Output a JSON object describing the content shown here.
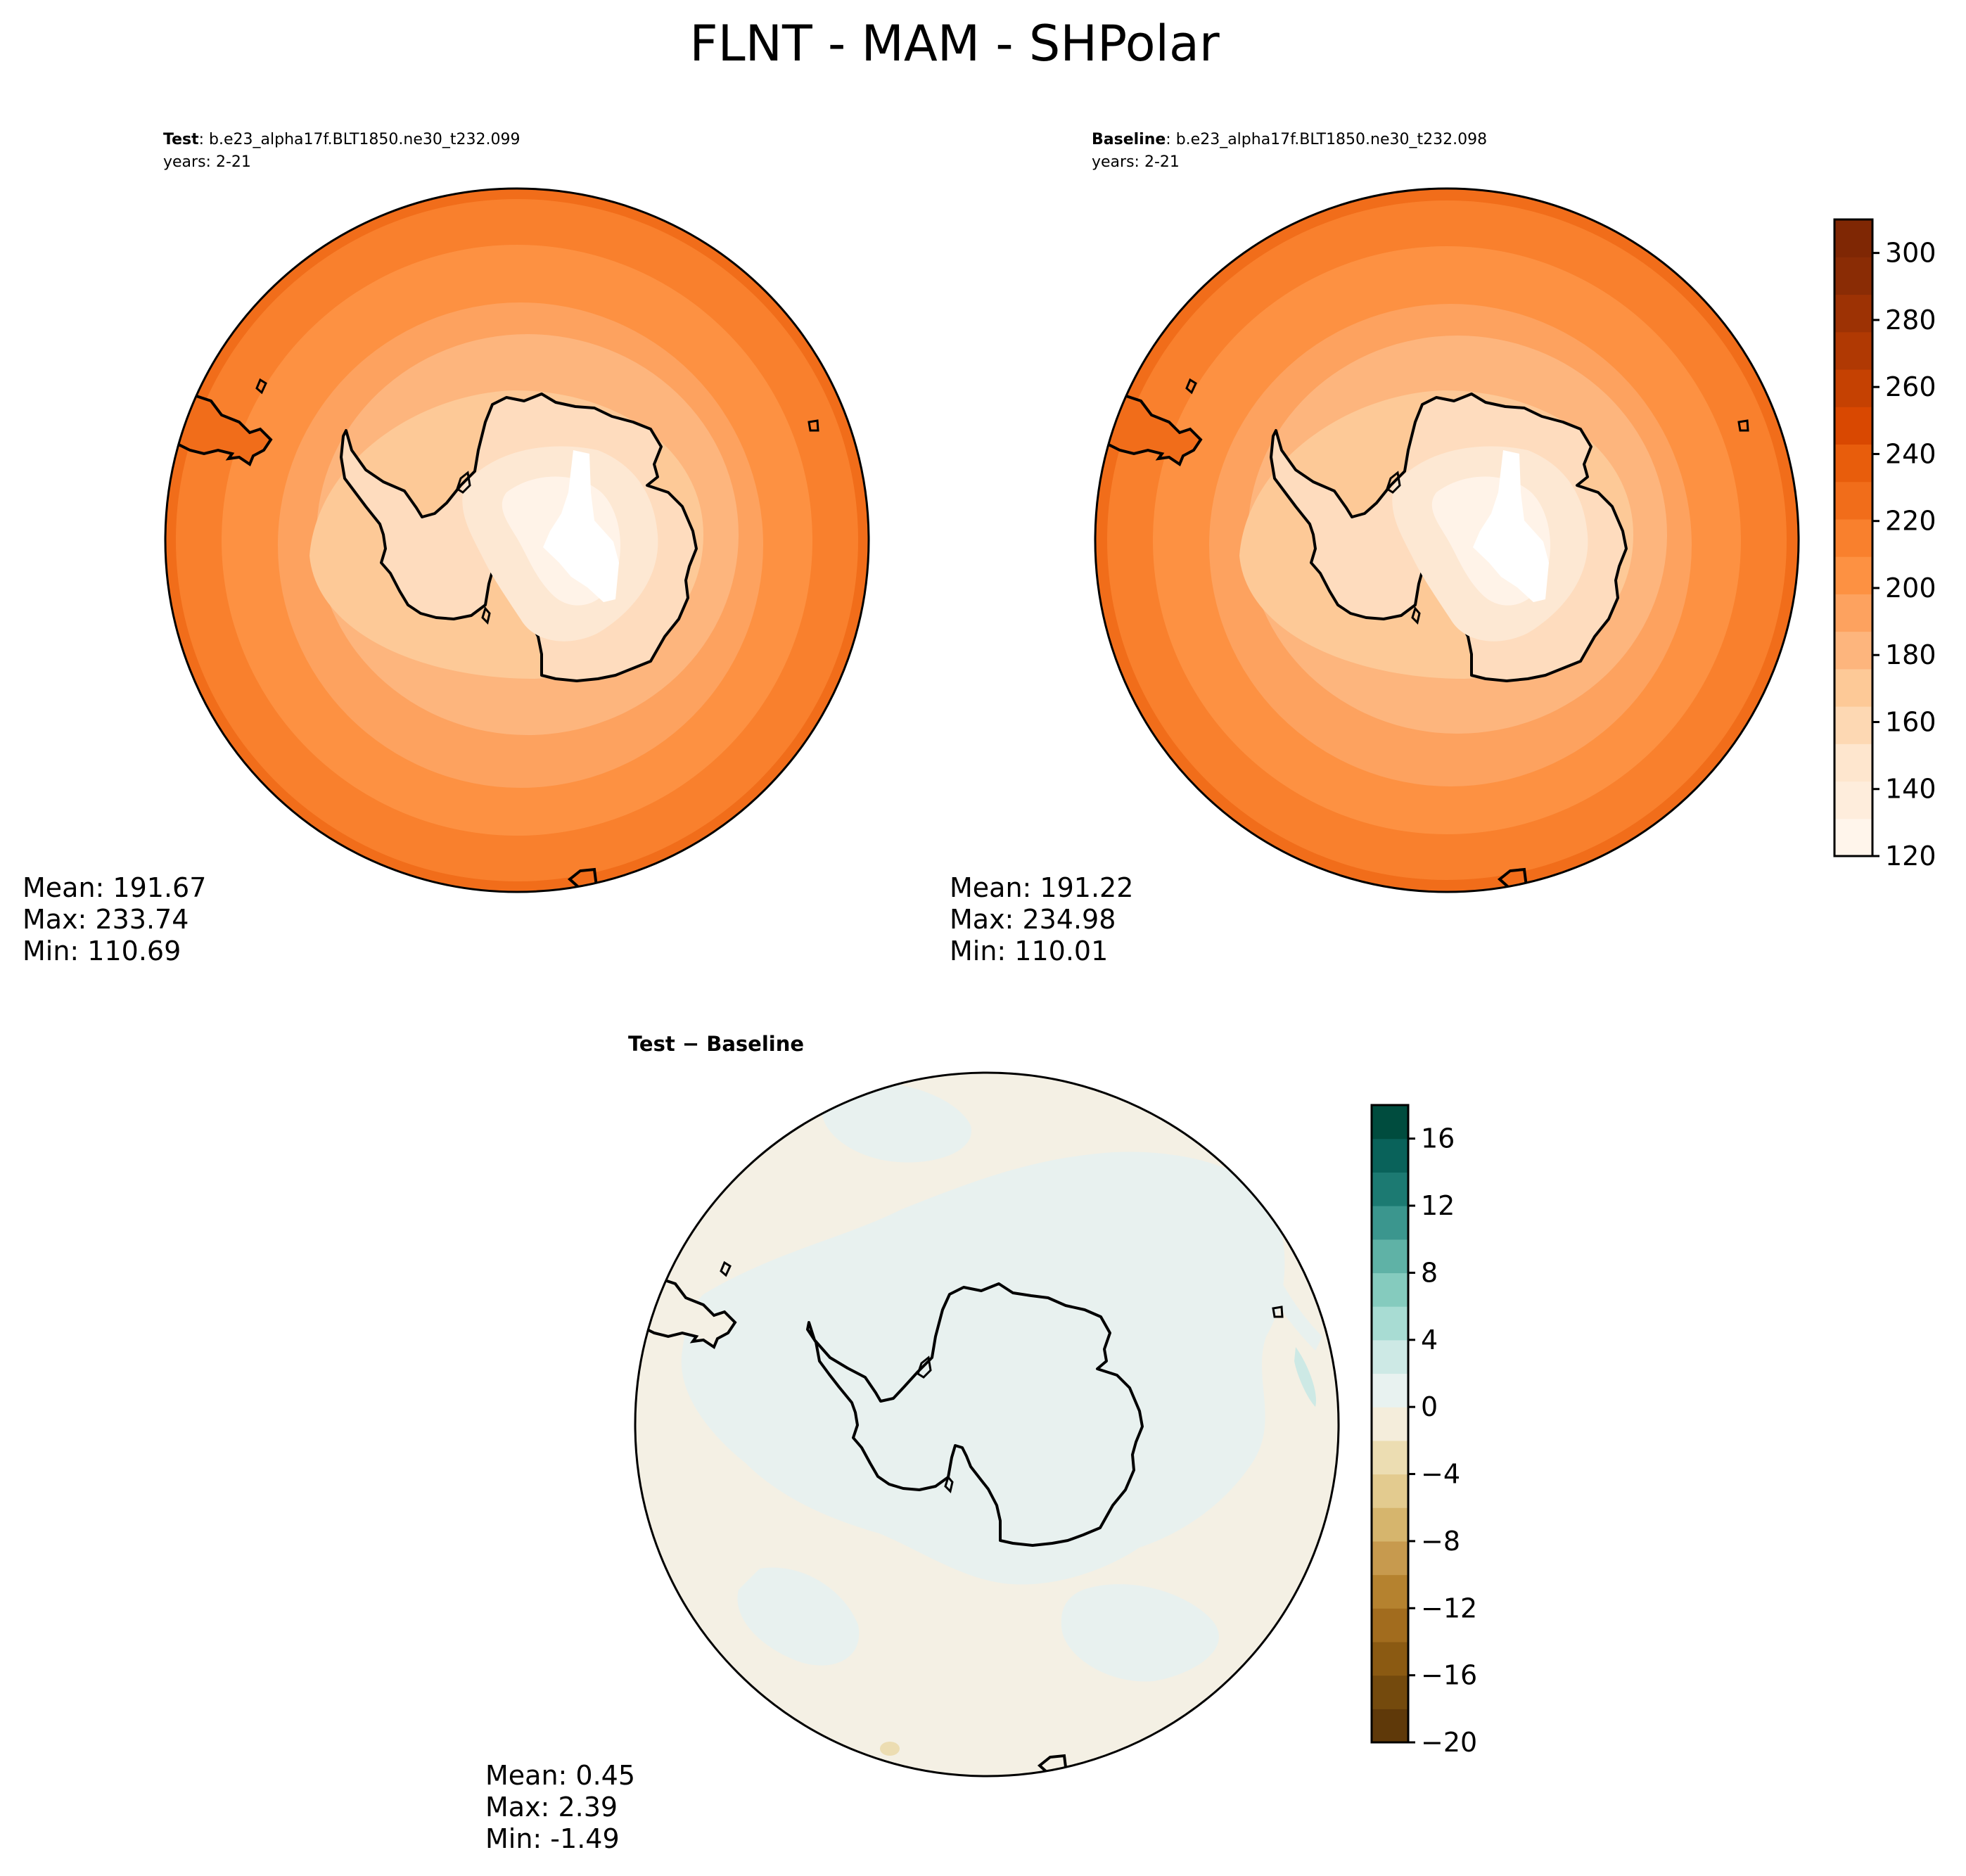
{
  "figure": {
    "title": "FLNT - MAM - SHPolar"
  },
  "panels": {
    "test": {
      "label_bold": "Test",
      "label_rest": ": b.e23_alpha17f.BLT1850.ne30_t232.099",
      "years": "years: 2-21",
      "stats": {
        "mean": "Mean: 191.67",
        "max": "Max: 233.74",
        "min": "Min: 110.69"
      }
    },
    "baseline": {
      "label_bold": "Baseline",
      "label_rest": ": b.e23_alpha17f.BLT1850.ne30_t232.098",
      "years": "years: 2-21",
      "stats": {
        "mean": "Mean: 191.22",
        "max": "Max: 234.98",
        "min": "Min: 110.01"
      }
    },
    "diff": {
      "title": "Test − Baseline",
      "stats": {
        "mean": "Mean:  0.45",
        "max": "Max:  2.39",
        "min": "Min: -1.49"
      }
    }
  },
  "colorbars": {
    "main": {
      "colormap": "Oranges",
      "range": [
        120,
        310
      ],
      "step": 10,
      "ticks": [
        "120",
        "140",
        "160",
        "180",
        "200",
        "220",
        "240",
        "260",
        "280",
        "300"
      ],
      "colors": [
        "#fff5eb",
        "#feeddc",
        "#fee6ce",
        "#fdd8b3",
        "#fdc997",
        "#fdb57d",
        "#fda25f",
        "#fd9142",
        "#f9802d",
        "#f16d1a",
        "#e85d0c",
        "#d94801",
        "#c54102",
        "#b03903",
        "#9d3204",
        "#8a2c05",
        "#7f2704"
      ]
    },
    "diff": {
      "colormap": "BrBG",
      "range": [
        -20,
        18
      ],
      "step": 2,
      "ticks": [
        "−20",
        "−16",
        "−12",
        "−8",
        "−4",
        "0",
        "4",
        "8",
        "12",
        "16"
      ],
      "colors": [
        "#5f3909",
        "#744a0d",
        "#8b5a12",
        "#a26c1e",
        "#b5822f",
        "#c79a4e",
        "#d6b56d",
        "#e3cb8f",
        "#ecddb2",
        "#f4eddb",
        "#e8f2f0",
        "#cde9e5",
        "#a8dcd3",
        "#85cbbe",
        "#5fb2a6",
        "#3b968e",
        "#1c7a72",
        "#09625a",
        "#004c3e"
      ]
    }
  }
}
